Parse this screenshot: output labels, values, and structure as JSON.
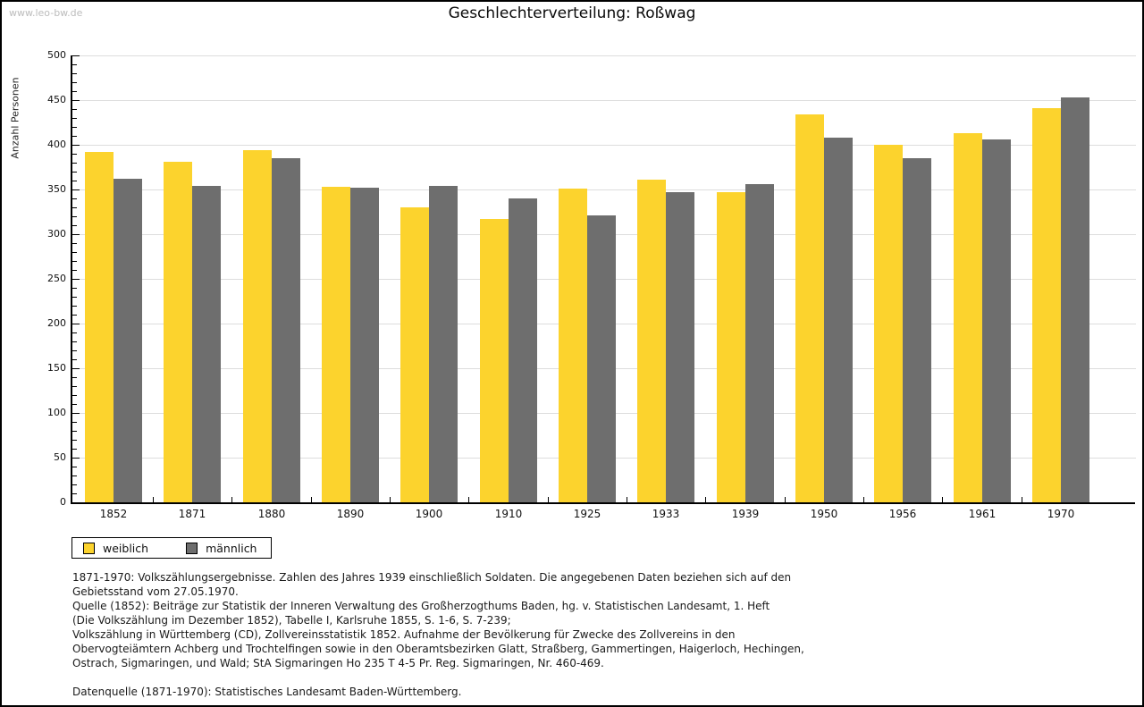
{
  "watermark": "www.leo-bw.de",
  "chart_data": {
    "type": "bar",
    "title": "Geschlechterverteilung: Roßwag",
    "ylabel": "Anzahl Personen",
    "xlabel": "",
    "ylim": [
      0,
      500
    ],
    "ytick_major": 50,
    "ytick_minor": 10,
    "grid": true,
    "legend_position": "bottom-left",
    "categories": [
      "1852",
      "1871",
      "1880",
      "1890",
      "1900",
      "1910",
      "1925",
      "1933",
      "1939",
      "1950",
      "1956",
      "1961",
      "1970"
    ],
    "series": [
      {
        "name": "weiblich",
        "color": "#FCD32D",
        "values": [
          392,
          381,
          394,
          353,
          330,
          317,
          351,
          361,
          347,
          434,
          400,
          413,
          441
        ]
      },
      {
        "name": "männlich",
        "color": "#6E6E6E",
        "values": [
          362,
          354,
          385,
          352,
          354,
          340,
          321,
          347,
          356,
          408,
          385,
          406,
          453
        ]
      }
    ]
  },
  "footnotes": {
    "lines": [
      "1871-1970: Volkszählungsergebnisse. Zahlen des Jahres 1939 einschließlich Soldaten. Die angegebenen Daten beziehen sich auf den",
      "Gebietsstand vom 27.05.1970.",
      "Quelle (1852): Beiträge zur Statistik der Inneren Verwaltung des Großherzogthums Baden, hg. v. Statistischen Landesamt, 1. Heft",
      "(Die Volkszählung im Dezember 1852), Tabelle I, Karlsruhe 1855, S. 1-6, S. 7-239;",
      "Volkszählung in Württemberg (CD), Zollvereinsstatistik 1852. Aufnahme der Bevölkerung für Zwecke des Zollvereins in den",
      "Obervogteiämtern Achberg und Trochtelfingen sowie in den Oberamtsbezirken Glatt, Straßberg, Gammertingen, Haigerloch, Hechingen,",
      "Ostrach, Sigmaringen, und Wald; StA Sigmaringen Ho 235 T 4-5 Pr. Reg. Sigmaringen, Nr. 460-469.",
      "Datenquelle (1871-1970): Statistisches Landesamt Baden-Württemberg."
    ]
  }
}
